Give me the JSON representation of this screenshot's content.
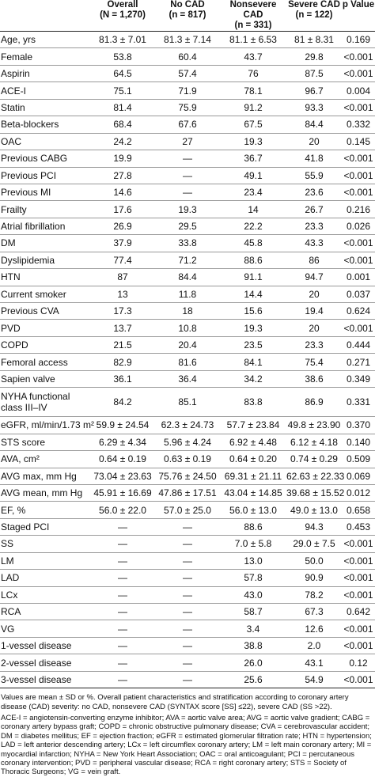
{
  "header": {
    "col_label": "",
    "overall": {
      "title": "Overall",
      "n": "(N = 1,270)"
    },
    "nocad": {
      "title": "No CAD",
      "n": "(n = 817)"
    },
    "nonsevere": {
      "title": "Nonsevere CAD",
      "n": "(n = 331)"
    },
    "severe": {
      "title": "Severe CAD",
      "n": "(n = 122)"
    },
    "pvalue": {
      "title": "p Value"
    }
  },
  "rows": [
    {
      "label": "Age, yrs",
      "overall": "81.3 ± 7.01",
      "nocad": "81.3 ± 7.14",
      "nonsevere": "81.1 ± 6.53",
      "severe": "81 ± 8.31",
      "p": "0.169"
    },
    {
      "label": "Female",
      "overall": "53.8",
      "nocad": "60.4",
      "nonsevere": "43.7",
      "severe": "29.8",
      "p": "<0.001"
    },
    {
      "label": "Aspirin",
      "overall": "64.5",
      "nocad": "57.4",
      "nonsevere": "76",
      "severe": "87.5",
      "p": "<0.001"
    },
    {
      "label": "ACE-I",
      "overall": "75.1",
      "nocad": "71.9",
      "nonsevere": "78.1",
      "severe": "96.7",
      "p": "0.004"
    },
    {
      "label": "Statin",
      "overall": "81.4",
      "nocad": "75.9",
      "nonsevere": "91.2",
      "severe": "93.3",
      "p": "<0.001"
    },
    {
      "label": "Beta-blockers",
      "overall": "68.4",
      "nocad": "67.6",
      "nonsevere": "67.5",
      "severe": "84.4",
      "p": "0.332"
    },
    {
      "label": "OAC",
      "overall": "24.2",
      "nocad": "27",
      "nonsevere": "19.3",
      "severe": "20",
      "p": "0.145"
    },
    {
      "label": "Previous CABG",
      "overall": "19.9",
      "nocad": "—",
      "nonsevere": "36.7",
      "severe": "41.8",
      "p": "<0.001"
    },
    {
      "label": "Previous PCI",
      "overall": "27.8",
      "nocad": "—",
      "nonsevere": "49.1",
      "severe": "55.9",
      "p": "<0.001"
    },
    {
      "label": "Previous MI",
      "overall": "14.6",
      "nocad": "—",
      "nonsevere": "23.4",
      "severe": "23.6",
      "p": "<0.001"
    },
    {
      "label": "Frailty",
      "overall": "17.6",
      "nocad": "19.3",
      "nonsevere": "14",
      "severe": "26.7",
      "p": "0.216"
    },
    {
      "label": "Atrial fibrillation",
      "overall": "26.9",
      "nocad": "29.5",
      "nonsevere": "22.2",
      "severe": "23.3",
      "p": "0.026"
    },
    {
      "label": "DM",
      "overall": "37.9",
      "nocad": "33.8",
      "nonsevere": "45.8",
      "severe": "43.3",
      "p": "<0.001"
    },
    {
      "label": "Dyslipidemia",
      "overall": "77.4",
      "nocad": "71.2",
      "nonsevere": "88.6",
      "severe": "86",
      "p": "<0.001"
    },
    {
      "label": "HTN",
      "overall": "87",
      "nocad": "84.4",
      "nonsevere": "91.1",
      "severe": "94.7",
      "p": "0.001"
    },
    {
      "label": "Current smoker",
      "overall": "13",
      "nocad": "11.8",
      "nonsevere": "14.4",
      "severe": "20",
      "p": "0.037"
    },
    {
      "label": "Previous CVA",
      "overall": "17.3",
      "nocad": "18",
      "nonsevere": "15.6",
      "severe": "19.4",
      "p": "0.624"
    },
    {
      "label": "PVD",
      "overall": "13.7",
      "nocad": "10.8",
      "nonsevere": "19.3",
      "severe": "20",
      "p": "<0.001"
    },
    {
      "label": "COPD",
      "overall": "21.5",
      "nocad": "20.4",
      "nonsevere": "23.5",
      "severe": "23.3",
      "p": "0.444"
    },
    {
      "label": "Femoral access",
      "overall": "82.9",
      "nocad": "81.6",
      "nonsevere": "84.1",
      "severe": "75.4",
      "p": "0.271"
    },
    {
      "label": "Sapien valve",
      "overall": "36.1",
      "nocad": "36.4",
      "nonsevere": "34.2",
      "severe": "38.6",
      "p": "0.349"
    },
    {
      "label": "NYHA functional class III–IV",
      "overall": "84.2",
      "nocad": "85.1",
      "nonsevere": "83.8",
      "severe": "86.9",
      "p": "0.331",
      "tall": true
    },
    {
      "label": "eGFR, ml/min/1.73 m²",
      "overall": "59.9 ± 24.54",
      "nocad": "62.3 ± 24.73",
      "nonsevere": "57.7 ± 23.84",
      "severe": "49.8 ± 23.90",
      "p": "0.370"
    },
    {
      "label": "STS score",
      "overall": "6.29 ± 4.34",
      "nocad": "5.96 ± 4.24",
      "nonsevere": "6.92 ± 4.48",
      "severe": "6.12 ± 4.18",
      "p": "0.140"
    },
    {
      "label": "AVA, cm²",
      "overall": "0.64 ± 0.19",
      "nocad": "0.63 ± 0.19",
      "nonsevere": "0.64 ± 0.20",
      "severe": "0.74 ± 0.29",
      "p": "0.509"
    },
    {
      "label": "AVG max, mm Hg",
      "overall": "73.04 ± 23.63",
      "nocad": "75.76 ± 24.50",
      "nonsevere": "69.31 ± 21.11",
      "severe": "62.63 ± 22.33",
      "p": "0.069"
    },
    {
      "label": "AVG mean, mm Hg",
      "overall": "45.91 ± 16.69",
      "nocad": "47.86 ± 17.51",
      "nonsevere": "43.04 ± 14.85",
      "severe": "39.68 ± 15.52",
      "p": "0.012"
    },
    {
      "label": "EF, %",
      "overall": "56.0 ± 22.0",
      "nocad": "57.0 ± 25.0",
      "nonsevere": "56.0 ± 13.0",
      "severe": "49.0 ± 13.0",
      "p": "0.658"
    },
    {
      "label": "Staged PCI",
      "overall": "—",
      "nocad": "—",
      "nonsevere": "88.6",
      "severe": "94.3",
      "p": "0.453"
    },
    {
      "label": "SS",
      "overall": "—",
      "nocad": "—",
      "nonsevere": "7.0 ± 5.8",
      "severe": "29.0 ± 7.5",
      "p": "<0.001"
    },
    {
      "label": "LM",
      "overall": "—",
      "nocad": "—",
      "nonsevere": "13.0",
      "severe": "50.0",
      "p": "<0.001"
    },
    {
      "label": "LAD",
      "overall": "—",
      "nocad": "—",
      "nonsevere": "57.8",
      "severe": "90.9",
      "p": "<0.001"
    },
    {
      "label": "LCx",
      "overall": "—",
      "nocad": "—",
      "nonsevere": "43.0",
      "severe": "78.2",
      "p": "<0.001"
    },
    {
      "label": "RCA",
      "overall": "—",
      "nocad": "—",
      "nonsevere": "58.7",
      "severe": "67.3",
      "p": "0.642"
    },
    {
      "label": "VG",
      "overall": "—",
      "nocad": "—",
      "nonsevere": "3.4",
      "severe": "12.6",
      "p": "<0.001"
    },
    {
      "label": "1-vessel disease",
      "overall": "—",
      "nocad": "—",
      "nonsevere": "38.8",
      "severe": "2.0",
      "p": "<0.001"
    },
    {
      "label": "2-vessel disease",
      "overall": "—",
      "nocad": "—",
      "nonsevere": "26.0",
      "severe": "43.1",
      "p": "0.12"
    },
    {
      "label": "3-vessel disease",
      "overall": "—",
      "nocad": "—",
      "nonsevere": "25.6",
      "severe": "54.9",
      "p": "<0.001"
    }
  ],
  "footnotes": {
    "note1": "Values are mean ± SD or %. Overall patient characteristics and stratification according to coronary artery disease (CAD) severity: no CAD, nonsevere CAD (SYNTAX score [SS] ≤22), severe CAD (SS >22).",
    "note2": "ACE-I = angiotensin-converting enzyme inhibitor; AVA = aortic valve area; AVG = aortic valve gradient; CABG = coronary artery bypass graft; COPD = chronic obstructive pulmonary disease; CVA = cerebrovascular accident; DM = diabetes mellitus; EF = ejection fraction; eGFR = estimated glomerular filtration rate; HTN = hypertension; LAD = left anterior descending artery; LCx = left circumflex coronary artery; LM = left main coronary artery; MI = myocardial infarction; NYHA = New York Heart Association; OAC = oral anticoagulant; PCI = percutaneous coronary intervention; PVD = peripheral vascular disease; RCA = right coronary artery; STS = Society of Thoracic Surgeons; VG = vein graft."
  }
}
